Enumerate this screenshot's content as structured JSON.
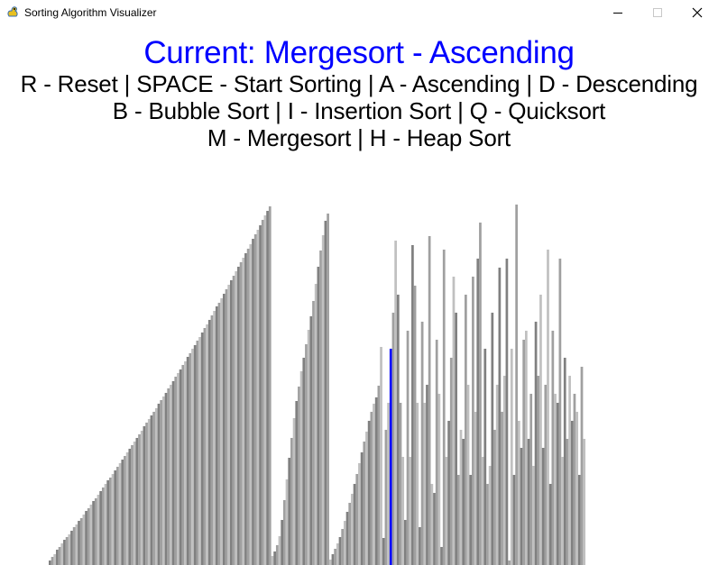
{
  "window": {
    "title": "Sorting Algorithm Visualizer",
    "icon": "pygame-snake-icon"
  },
  "status": {
    "current_text": "Current: Mergesort - Ascending",
    "algorithm": "Mergesort",
    "order": "Ascending",
    "color": "#0000ff"
  },
  "help": [
    "R - Reset | SPACE - Start Sorting | A - Ascending | D - Descending",
    "B - Bubble Sort | I - Insertion Sort | Q - Quicksort",
    "M - Mergesort | H - Heap Sort"
  ],
  "visualizer": {
    "bar_colors": [
      "#808080",
      "#a0a0a0",
      "#c0c0c0"
    ],
    "highlight_color": "#0000ff",
    "highlight_index": 141,
    "max_value": 400,
    "values": [
      5,
      9,
      12,
      17,
      20,
      24,
      28,
      31,
      34,
      38,
      42,
      45,
      49,
      52,
      56,
      60,
      63,
      67,
      71,
      74,
      78,
      82,
      86,
      90,
      94,
      97,
      101,
      105,
      109,
      113,
      117,
      121,
      125,
      129,
      133,
      137,
      141,
      145,
      149,
      154,
      158,
      162,
      166,
      170,
      174,
      179,
      183,
      187,
      191,
      196,
      200,
      204,
      209,
      213,
      217,
      222,
      226,
      231,
      235,
      240,
      244,
      249,
      253,
      258,
      263,
      267,
      272,
      277,
      282,
      287,
      291,
      296,
      301,
      306,
      311,
      316,
      321,
      326,
      331,
      336,
      341,
      346,
      351,
      356,
      362,
      367,
      372,
      377,
      383,
      388,
      393,
      398,
      10,
      15,
      22,
      32,
      50,
      72,
      95,
      119,
      141,
      163,
      182,
      198,
      215,
      230,
      245,
      261,
      276,
      293,
      312,
      331,
      349,
      366,
      382,
      390,
      6,
      12,
      18,
      24,
      31,
      40,
      49,
      59,
      69,
      79,
      90,
      101,
      113,
      125,
      137,
      148,
      160,
      170,
      179,
      186,
      199,
      242,
      30,
      150,
      180,
      240,
      280,
      360,
      300,
      180,
      120,
      50,
      260,
      120,
      355,
      310,
      180,
      42,
      270,
      180,
      200,
      365,
      90,
      80,
      250,
      190,
      20,
      350,
      120,
      160,
      230,
      320,
      280,
      100,
      150,
      140,
      300,
      200,
      100,
      320,
      170,
      340,
      380,
      120,
      240,
      90,
      110,
      280,
      150,
      200,
      330,
      170,
      210,
      340,
      5,
      240,
      100,
      400,
      160,
      130,
      250,
      260,
      140,
      190,
      110,
      270,
      210,
      300,
      130,
      200,
      350,
      90,
      260,
      190,
      180,
      340,
      120,
      230,
      140,
      210,
      160,
      190,
      170,
      100,
      220,
      140
    ]
  }
}
